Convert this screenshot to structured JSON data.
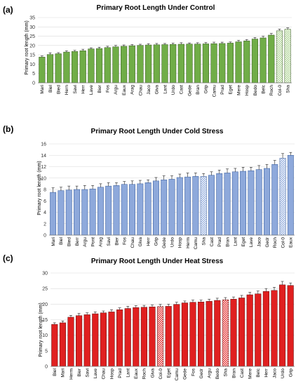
{
  "panels": [
    {
      "label": "(a)",
      "chart_data": {
        "type": "bar",
        "title": "Primary Root Length Under Control",
        "ylabel": "Primary root length (mm)",
        "xlabel": "",
        "ylim": [
          0,
          35
        ],
        "yticks": [
          0,
          5,
          10,
          15,
          20,
          25,
          30,
          35
        ],
        "grid": true,
        "legend": "none",
        "bar_color": "#70AD47",
        "bar_edge": "#375623",
        "highlight_categories": [
          "Col-0",
          "Sha"
        ],
        "categories": [
          "Mari",
          "Biel",
          "Bied",
          "Hern",
          "Savi",
          "Herr",
          "Lave",
          "Bier",
          "Fos",
          "Argu",
          "Eaux",
          "Arag",
          "Chau",
          "Jaco",
          "Giva",
          "Lant",
          "Urdo",
          "Cast",
          "Gede",
          "Bran",
          "Grip",
          "Camu",
          "Prad",
          "Eget",
          "Mere",
          "Hosp",
          "Bedo",
          "Belc",
          "Roch",
          "Col-0",
          "Sha"
        ],
        "values": [
          13.8,
          15.2,
          15.6,
          16.5,
          16.8,
          17.2,
          18.2,
          18.4,
          18.9,
          19.3,
          19.6,
          19.9,
          20.1,
          20.3,
          20.4,
          20.5,
          20.6,
          20.7,
          20.8,
          20.8,
          20.9,
          21.0,
          21.1,
          21.3,
          22.0,
          22.5,
          23.5,
          24.1,
          25.6,
          27.9,
          28.7
        ],
        "errors": [
          0.6,
          0.9,
          0.6,
          0.7,
          0.6,
          0.8,
          0.6,
          0.7,
          0.7,
          0.8,
          0.7,
          0.6,
          0.6,
          0.7,
          0.7,
          0.6,
          0.7,
          0.8,
          0.6,
          0.7,
          0.7,
          0.8,
          0.7,
          0.6,
          0.8,
          0.7,
          0.8,
          0.9,
          0.9,
          0.9,
          0.8
        ]
      }
    },
    {
      "label": "(b)",
      "chart_data": {
        "type": "bar",
        "title": "Primary Root Length Under Cold Stress",
        "ylabel": "Primary root length (mm)",
        "xlabel": "",
        "ylim": [
          0,
          16
        ],
        "yticks": [
          0,
          2,
          4,
          6,
          8,
          10,
          12,
          14,
          16
        ],
        "grid": true,
        "legend": "none",
        "bar_color": "#8EA9DB",
        "bar_edge": "#2F5597",
        "highlight_categories": [
          "Sha",
          "Col-0"
        ],
        "categories": [
          "Mari",
          "Biel",
          "Bied",
          "Berr",
          "Argu",
          "Pont",
          "Arag",
          "Savi",
          "Bier",
          "Fos",
          "Chau",
          "Giva",
          "Herr",
          "Grip",
          "Gede",
          "Urdo",
          "Hosp",
          "Herm",
          "Camu",
          "Sha",
          "Cast",
          "Prad",
          "Bran",
          "Lant",
          "Eget",
          "Lave",
          "Jaco",
          "Gedr",
          "Roch",
          "Col-0",
          "Eaux"
        ],
        "values": [
          7.5,
          7.8,
          7.9,
          8.0,
          8.0,
          8.1,
          8.4,
          8.6,
          8.7,
          8.9,
          8.9,
          9.0,
          9.2,
          9.5,
          9.7,
          9.8,
          10.1,
          10.2,
          10.3,
          10.3,
          10.5,
          10.8,
          10.9,
          11.1,
          11.2,
          11.3,
          11.5,
          11.7,
          12.4,
          13.5,
          14.0
        ],
        "errors": [
          0.8,
          0.6,
          0.7,
          0.6,
          0.7,
          0.6,
          0.6,
          0.6,
          0.5,
          0.5,
          0.6,
          0.6,
          0.5,
          0.6,
          0.7,
          0.6,
          0.6,
          0.7,
          0.6,
          0.5,
          0.6,
          0.6,
          0.7,
          0.6,
          0.7,
          0.6,
          0.7,
          0.7,
          0.7,
          0.8,
          0.5
        ]
      }
    },
    {
      "label": "(c)",
      "chart_data": {
        "type": "bar",
        "title": "Primary Root Length Under Heat Stress",
        "ylabel": "Primary root length (mm)",
        "xlabel": "",
        "ylim": [
          0,
          30
        ],
        "yticks": [
          0,
          5,
          10,
          15,
          20,
          25,
          30
        ],
        "grid": true,
        "legend": "none",
        "bar_color": "#E02020",
        "bar_edge": "#5A0E0E",
        "highlight_categories": [
          "Col-0",
          "Sha"
        ],
        "categories": [
          "Biel",
          "Mari",
          "Herm",
          "Bier",
          "Savi",
          "Lave",
          "Chau",
          "Hosp",
          "Prad",
          "Lant",
          "Eaux",
          "Roch",
          "Giva",
          "Col-0",
          "Eget",
          "Camu",
          "Gede",
          "Fos",
          "Gedr",
          "Argu",
          "Bedo",
          "Sha",
          "Bran",
          "Cast",
          "Mere",
          "Belc",
          "Herr",
          "Jaco",
          "Urdo",
          "Grip"
        ],
        "values": [
          13.5,
          14.0,
          15.8,
          16.3,
          16.6,
          16.9,
          17.2,
          17.5,
          18.2,
          18.6,
          18.9,
          19.0,
          19.1,
          19.2,
          19.3,
          19.9,
          20.4,
          20.6,
          20.7,
          20.9,
          21.2,
          21.4,
          21.6,
          22.0,
          23.0,
          23.3,
          24.1,
          24.4,
          26.2,
          26.0
        ],
        "errors": [
          0.5,
          0.6,
          0.6,
          0.7,
          0.6,
          0.6,
          0.6,
          0.7,
          0.6,
          0.7,
          0.6,
          0.6,
          0.6,
          0.7,
          0.7,
          0.7,
          0.6,
          0.7,
          0.6,
          0.7,
          0.7,
          0.7,
          0.7,
          0.8,
          0.8,
          0.9,
          0.9,
          1.0,
          1.1,
          0.8
        ]
      }
    }
  ]
}
